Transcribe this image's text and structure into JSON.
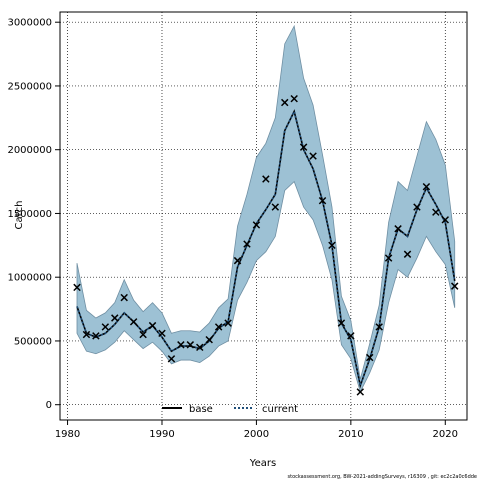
{
  "chart_data": {
    "type": "line",
    "xlabel": "Years",
    "ylabel": "Catch",
    "xlim": [
      1979.2,
      2022.3
    ],
    "ylim": [
      -120000,
      3080000
    ],
    "x_ticks": [
      1980,
      1990,
      2000,
      2010,
      2020
    ],
    "y_ticks": [
      0,
      500000,
      1000000,
      1500000,
      2000000,
      2500000,
      3000000
    ],
    "grid": true,
    "legend_placement": "bottom-center",
    "band_color": "#9dc1d4",
    "band_edge_color": "#6f8fa3",
    "marker_color": "#000000",
    "series": [
      {
        "name": "base",
        "line_style": "solid",
        "color": "#000000",
        "x": [
          1981,
          1982,
          1983,
          1984,
          1985,
          1986,
          1987,
          1988,
          1989,
          1990,
          1991,
          1992,
          1993,
          1994,
          1995,
          1996,
          1997,
          1998,
          1999,
          2000,
          2001,
          2002,
          2003,
          2004,
          2005,
          2006,
          2007,
          2008,
          2009,
          2010,
          2011,
          2012,
          2013,
          2014,
          2015,
          2016,
          2017,
          2018,
          2019,
          2020,
          2021
        ],
        "y": [
          770000,
          560000,
          530000,
          560000,
          630000,
          720000,
          650000,
          570000,
          620000,
          530000,
          420000,
          460000,
          460000,
          440000,
          500000,
          600000,
          650000,
          1080000,
          1250000,
          1420000,
          1530000,
          1650000,
          2150000,
          2300000,
          2000000,
          1850000,
          1600000,
          1250000,
          640000,
          510000,
          150000,
          360000,
          610000,
          1150000,
          1380000,
          1320000,
          1530000,
          1700000,
          1570000,
          1430000,
          970000
        ]
      },
      {
        "name": "current",
        "line_style": "dotted",
        "color": "#1f4e79",
        "x": [
          1981,
          1982,
          1983,
          1984,
          1985,
          1986,
          1987,
          1988,
          1989,
          1990,
          1991,
          1992,
          1993,
          1994,
          1995,
          1996,
          1997,
          1998,
          1999,
          2000,
          2001,
          2002,
          2003,
          2004,
          2005,
          2006,
          2007,
          2008,
          2009,
          2010,
          2011,
          2012,
          2013,
          2014,
          2015,
          2016,
          2017,
          2018,
          2019,
          2020,
          2021
        ],
        "y": [
          770000,
          560000,
          530000,
          560000,
          630000,
          720000,
          650000,
          570000,
          620000,
          530000,
          420000,
          460000,
          460000,
          440000,
          500000,
          600000,
          650000,
          1080000,
          1250000,
          1420000,
          1530000,
          1650000,
          2150000,
          2300000,
          2000000,
          1850000,
          1600000,
          1250000,
          640000,
          510000,
          150000,
          360000,
          610000,
          1150000,
          1380000,
          1320000,
          1530000,
          1700000,
          1570000,
          1430000,
          970000
        ]
      }
    ],
    "confidence_band": {
      "x": [
        1981,
        1982,
        1983,
        1984,
        1985,
        1986,
        1987,
        1988,
        1989,
        1990,
        1991,
        1992,
        1993,
        1994,
        1995,
        1996,
        1997,
        1998,
        1999,
        2000,
        2001,
        2002,
        2003,
        2004,
        2005,
        2006,
        2007,
        2008,
        2009,
        2010,
        2011,
        2012,
        2013,
        2014,
        2015,
        2016,
        2017,
        2018,
        2019,
        2020,
        2021
      ],
      "lower": [
        560000,
        420000,
        400000,
        430000,
        490000,
        580000,
        510000,
        440000,
        490000,
        420000,
        320000,
        350000,
        350000,
        330000,
        380000,
        460000,
        500000,
        820000,
        960000,
        1130000,
        1200000,
        1320000,
        1680000,
        1750000,
        1550000,
        1450000,
        1250000,
        980000,
        470000,
        360000,
        100000,
        250000,
        430000,
        800000,
        1060000,
        1000000,
        1150000,
        1320000,
        1200000,
        1100000,
        760000
      ],
      "upper": [
        1110000,
        740000,
        680000,
        720000,
        800000,
        980000,
        820000,
        730000,
        800000,
        720000,
        560000,
        580000,
        580000,
        570000,
        640000,
        760000,
        830000,
        1400000,
        1650000,
        1940000,
        2050000,
        2250000,
        2830000,
        2970000,
        2560000,
        2350000,
        1960000,
        1550000,
        850000,
        660000,
        200000,
        480000,
        780000,
        1430000,
        1750000,
        1680000,
        1950000,
        2220000,
        2080000,
        1880000,
        1280000
      ]
    },
    "markers": {
      "x": [
        1981,
        1982,
        1983,
        1984,
        1985,
        1986,
        1987,
        1988,
        1989,
        1990,
        1991,
        1992,
        1993,
        1994,
        1995,
        1996,
        1997,
        1998,
        1999,
        2000,
        2001,
        2002,
        2003,
        2004,
        2005,
        2006,
        2007,
        2008,
        2009,
        2010,
        2011,
        2012,
        2013,
        2014,
        2015,
        2016,
        2017,
        2018,
        2019,
        2020,
        2021
      ],
      "y": [
        920000,
        550000,
        540000,
        610000,
        680000,
        840000,
        650000,
        550000,
        620000,
        560000,
        360000,
        470000,
        470000,
        450000,
        510000,
        610000,
        640000,
        1130000,
        1260000,
        1410000,
        1770000,
        1550000,
        2370000,
        2400000,
        2020000,
        1950000,
        1600000,
        1250000,
        640000,
        540000,
        100000,
        370000,
        610000,
        1150000,
        1380000,
        1180000,
        1550000,
        1710000,
        1510000,
        1450000,
        930000
      ]
    }
  },
  "footer": "stockassessment.org,  BW-2021-addingSurveys,  r16309 ,  git:  ec2c2a0c6dde"
}
